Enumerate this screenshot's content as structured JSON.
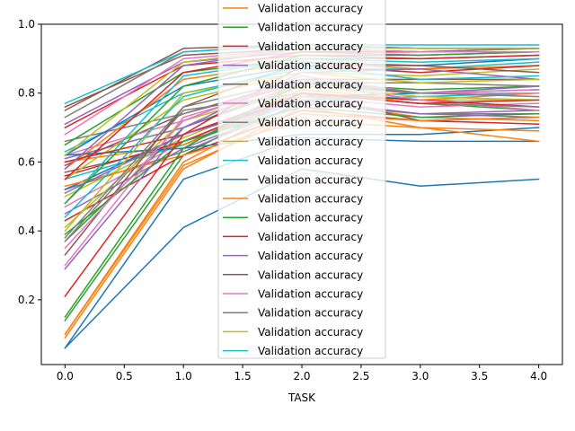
{
  "chart_data": {
    "type": "line",
    "title": "",
    "xlabel": "TASK",
    "ylabel": "",
    "xlim": [
      -0.2,
      4.2
    ],
    "ylim": [
      0.012,
      1.0
    ],
    "xticks": [
      "0.0",
      "0.5",
      "1.0",
      "1.5",
      "2.0",
      "2.5",
      "3.0",
      "3.5",
      "4.0"
    ],
    "yticks": [
      "0.2",
      "0.4",
      "0.6",
      "0.8",
      "1.0"
    ],
    "grid": false,
    "legend": "upper center, overlapping plot",
    "x": [
      0,
      1,
      2,
      3,
      4
    ],
    "series": [
      {
        "name": "Validation accuracy",
        "color": "#ff7f0e",
        "values": [
          0.09,
          0.58,
          0.76,
          0.7,
          0.66
        ]
      },
      {
        "name": "Validation accuracy",
        "color": "#2ca02c",
        "values": [
          0.15,
          0.64,
          0.83,
          0.8,
          0.8
        ]
      },
      {
        "name": "Validation accuracy",
        "color": "#d62728",
        "values": [
          0.21,
          0.68,
          0.88,
          0.86,
          0.88
        ]
      },
      {
        "name": "Validation accuracy",
        "color": "#9467bd",
        "values": [
          0.29,
          0.7,
          0.86,
          0.87,
          0.84
        ]
      },
      {
        "name": "Validation accuracy",
        "color": "#8c564b",
        "values": [
          0.33,
          0.76,
          0.89,
          0.88,
          0.86
        ]
      },
      {
        "name": "Validation accuracy",
        "color": "#e377c2",
        "values": [
          0.35,
          0.72,
          0.85,
          0.8,
          0.8
        ]
      },
      {
        "name": "Validation accuracy",
        "color": "#7f7f7f",
        "values": [
          0.38,
          0.76,
          0.84,
          0.8,
          0.79
        ]
      },
      {
        "name": "Validation accuracy",
        "color": "#bcbd22",
        "values": [
          0.4,
          0.8,
          0.86,
          0.83,
          0.84
        ]
      },
      {
        "name": "Validation accuracy",
        "color": "#17becf",
        "values": [
          0.44,
          0.79,
          0.88,
          0.84,
          0.85
        ]
      },
      {
        "name": "Validation accuracy",
        "color": "#1f77b4",
        "values": [
          0.06,
          0.41,
          0.58,
          0.53,
          0.55
        ]
      },
      {
        "name": "Validation accuracy",
        "color": "#ff7f0e",
        "values": [
          0.1,
          0.59,
          0.74,
          0.72,
          0.73
        ]
      },
      {
        "name": "Validation accuracy",
        "color": "#2ca02c",
        "values": [
          0.48,
          0.82,
          0.91,
          0.91,
          0.92
        ]
      },
      {
        "name": "Validation accuracy",
        "color": "#d62728",
        "values": [
          0.55,
          0.86,
          0.92,
          0.92,
          0.93
        ]
      },
      {
        "name": "Validation accuracy",
        "color": "#9467bd",
        "values": [
          0.58,
          0.88,
          0.93,
          0.92,
          0.93
        ]
      },
      {
        "name": "Validation accuracy",
        "color": "#8c564b",
        "values": [
          0.75,
          0.93,
          0.94,
          0.93,
          0.93
        ]
      },
      {
        "name": "Validation accuracy",
        "color": "#e377c2",
        "values": [
          0.68,
          0.9,
          0.93,
          0.92,
          0.92
        ]
      },
      {
        "name": "Validation accuracy",
        "color": "#7f7f7f",
        "values": [
          0.73,
          0.92,
          0.94,
          0.93,
          0.93
        ]
      },
      {
        "name": "Validation accuracy",
        "color": "#bcbd22",
        "values": [
          0.62,
          0.89,
          0.93,
          0.93,
          0.93
        ]
      },
      {
        "name": "Validation accuracy",
        "color": "#17becf",
        "values": [
          0.77,
          0.92,
          0.94,
          0.94,
          0.94
        ]
      }
    ],
    "background_series": [
      {
        "color": "#1f77b4",
        "values": [
          0.06,
          0.55,
          0.67,
          0.66,
          0.66
        ]
      },
      {
        "color": "#ff7f0e",
        "values": [
          0.1,
          0.6,
          0.78,
          0.73,
          0.72
        ]
      },
      {
        "color": "#2ca02c",
        "values": [
          0.14,
          0.62,
          0.8,
          0.77,
          0.75
        ]
      },
      {
        "color": "#d62728",
        "values": [
          0.43,
          0.62,
          0.75,
          0.72,
          0.71
        ]
      },
      {
        "color": "#9467bd",
        "values": [
          0.45,
          0.64,
          0.77,
          0.74,
          0.75
        ]
      },
      {
        "color": "#8c564b",
        "values": [
          0.57,
          0.65,
          0.8,
          0.72,
          0.73
        ]
      },
      {
        "color": "#e377c2",
        "values": [
          0.47,
          0.66,
          0.79,
          0.76,
          0.77
        ]
      },
      {
        "color": "#7f7f7f",
        "values": [
          0.52,
          0.63,
          0.77,
          0.74,
          0.74
        ]
      },
      {
        "color": "#bcbd22",
        "values": [
          0.5,
          0.67,
          0.81,
          0.78,
          0.78
        ]
      },
      {
        "color": "#17becf",
        "values": [
          0.55,
          0.65,
          0.78,
          0.79,
          0.8
        ]
      },
      {
        "color": "#1f77b4",
        "values": [
          0.52,
          0.68,
          0.79,
          0.8,
          0.81
        ]
      },
      {
        "color": "#ff7f0e",
        "values": [
          0.6,
          0.65,
          0.79,
          0.78,
          0.8
        ]
      },
      {
        "color": "#2ca02c",
        "values": [
          0.37,
          0.7,
          0.83,
          0.81,
          0.82
        ]
      },
      {
        "color": "#d62728",
        "values": [
          0.56,
          0.66,
          0.8,
          0.78,
          0.76
        ]
      },
      {
        "color": "#9467bd",
        "values": [
          0.61,
          0.7,
          0.82,
          0.8,
          0.82
        ]
      },
      {
        "color": "#8c564b",
        "values": [
          0.59,
          0.74,
          0.84,
          0.84,
          0.84
        ]
      },
      {
        "color": "#e377c2",
        "values": [
          0.62,
          0.72,
          0.82,
          0.8,
          0.81
        ]
      },
      {
        "color": "#7f7f7f",
        "values": [
          0.66,
          0.74,
          0.83,
          0.83,
          0.82
        ]
      },
      {
        "color": "#bcbd22",
        "values": [
          0.55,
          0.78,
          0.86,
          0.85,
          0.87
        ]
      },
      {
        "color": "#17becf",
        "values": [
          0.63,
          0.8,
          0.87,
          0.87,
          0.89
        ]
      },
      {
        "color": "#1f77b4",
        "values": [
          0.62,
          0.82,
          0.88,
          0.88,
          0.9
        ]
      },
      {
        "color": "#ff7f0e",
        "values": [
          0.58,
          0.84,
          0.89,
          0.87,
          0.88
        ]
      },
      {
        "color": "#2ca02c",
        "values": [
          0.65,
          0.86,
          0.9,
          0.9,
          0.91
        ]
      },
      {
        "color": "#d62728",
        "values": [
          0.7,
          0.88,
          0.91,
          0.9,
          0.91
        ]
      },
      {
        "color": "#9467bd",
        "values": [
          0.71,
          0.89,
          0.92,
          0.91,
          0.92
        ]
      },
      {
        "color": "#8c564b",
        "values": [
          0.76,
          0.91,
          0.93,
          0.92,
          0.92
        ]
      },
      {
        "color": "#e377c2",
        "values": [
          0.3,
          0.73,
          0.83,
          0.78,
          0.75
        ]
      },
      {
        "color": "#7f7f7f",
        "values": [
          0.37,
          0.75,
          0.8,
          0.77,
          0.76
        ]
      },
      {
        "color": "#bcbd22",
        "values": [
          0.41,
          0.72,
          0.82,
          0.79,
          0.78
        ]
      },
      {
        "color": "#17becf",
        "values": [
          0.48,
          0.85,
          0.9,
          0.89,
          0.9
        ]
      },
      {
        "color": "#1f77b4",
        "values": [
          0.62,
          0.64,
          0.68,
          0.68,
          0.7
        ]
      },
      {
        "color": "#ff7f0e",
        "values": [
          0.53,
          0.62,
          0.72,
          0.7,
          0.69
        ]
      },
      {
        "color": "#2ca02c",
        "values": [
          0.39,
          0.66,
          0.76,
          0.73,
          0.74
        ]
      },
      {
        "color": "#d62728",
        "values": [
          0.6,
          0.68,
          0.8,
          0.77,
          0.78
        ]
      },
      {
        "color": "#9467bd",
        "values": [
          0.51,
          0.68,
          0.78,
          0.74,
          0.73
        ]
      }
    ]
  }
}
